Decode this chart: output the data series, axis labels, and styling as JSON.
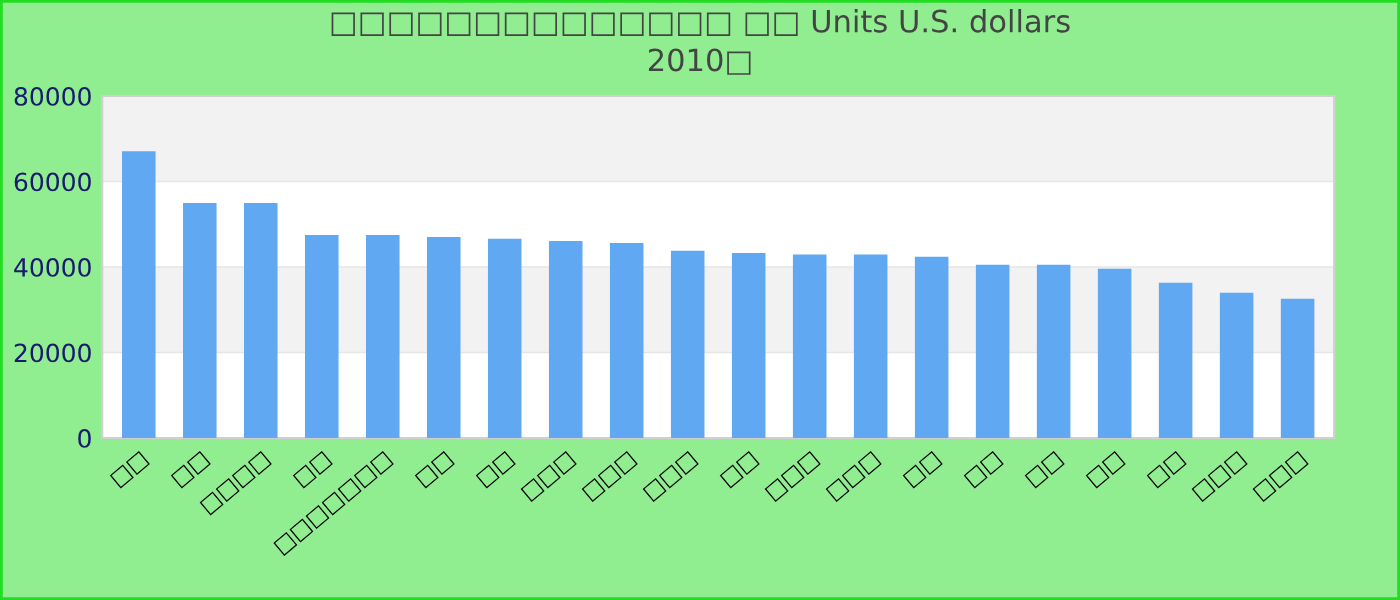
{
  "chart_data": {
    "type": "bar",
    "title": "□□□□□□□□□□□□□□ □□ Units U.S. dollars\n2010□",
    "categories": [
      "□□",
      "□□",
      "□□□□",
      "□□",
      "□□□□□□□",
      "□□",
      "□□",
      "□□□",
      "□□□",
      "□□□",
      "□□",
      "□□□",
      "□□□",
      "□□",
      "□□",
      "□□",
      "□□",
      "□□",
      "□□□",
      "□□□"
    ],
    "values": [
      67100,
      55000,
      55000,
      47500,
      47500,
      47000,
      46600,
      46100,
      45600,
      43800,
      43300,
      42900,
      42900,
      42400,
      40500,
      40500,
      39600,
      36300,
      34000,
      32600
    ],
    "color": "#61a8f3",
    "ylim": [
      0,
      80000
    ],
    "yticks": [
      0,
      20000,
      40000,
      60000,
      80000
    ],
    "grid": "y",
    "legend": false
  }
}
